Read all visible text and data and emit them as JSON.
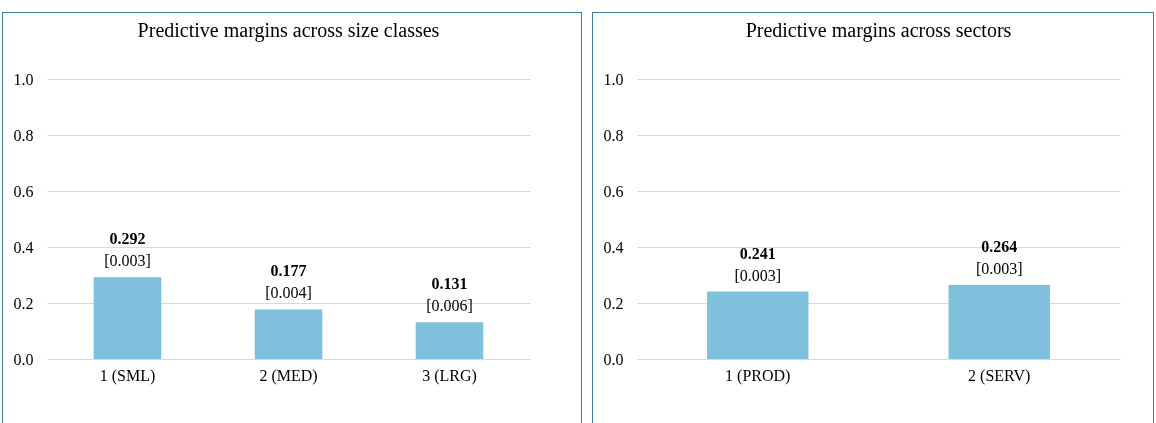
{
  "chart_data": [
    {
      "type": "bar",
      "title": "Predictive margins across size classes",
      "categories": [
        "1 (SML)",
        "2 (MED)",
        "3 (LRG)"
      ],
      "values": [
        0.292,
        0.177,
        0.131
      ],
      "color": "#7fc1dc",
      "data_labels": true,
      "ylim": [
        0,
        1
      ],
      "yticks": [
        {
          "value": 0,
          "label": "0.0"
        },
        {
          "value": 0.2,
          "label": "0.2"
        },
        {
          "value": 0.4,
          "label": "0.4"
        },
        {
          "value": 0.6,
          "label": "0.6"
        },
        {
          "value": 0.8,
          "label": "0.8"
        },
        {
          "value": 1,
          "label": "1.0"
        }
      ],
      "grid": "y",
      "annotations": [
        {
          "text": "[0.003]",
          "x": "1 (SML)",
          "y": 0.292
        },
        {
          "text": "[0.004]",
          "x": "2 (MED)",
          "y": 0.177
        },
        {
          "text": "[0.006]",
          "x": "3 (LRG)",
          "y": 0.131
        }
      ]
    },
    {
      "type": "bar",
      "title": "Predictive margins across sectors",
      "categories": [
        "1 (PROD)",
        "2 (SERV)"
      ],
      "values": [
        0.241,
        0.264
      ],
      "color": "#7fc1dc",
      "data_labels": true,
      "ylim": [
        0,
        1
      ],
      "yticks": [
        {
          "value": 0,
          "label": "0.0"
        },
        {
          "value": 0.2,
          "label": "0.2"
        },
        {
          "value": 0.4,
          "label": "0.4"
        },
        {
          "value": 0.6,
          "label": "0.6"
        },
        {
          "value": 0.8,
          "label": "0.8"
        },
        {
          "value": 1,
          "label": "1.0"
        }
      ],
      "grid": "y",
      "annotations": [
        {
          "text": "[0.003]",
          "x": "1 (PROD)",
          "y": 0.241
        },
        {
          "text": "[0.003]",
          "x": "2 (SERV)",
          "y": 0.264
        }
      ]
    }
  ]
}
